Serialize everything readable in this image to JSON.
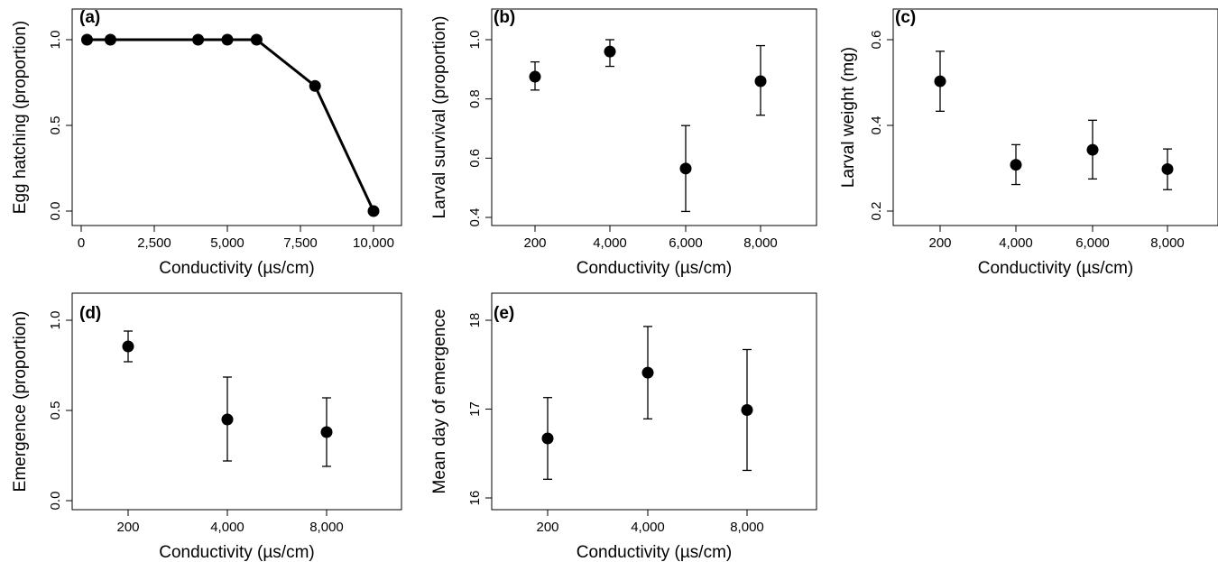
{
  "chart_data": [
    {
      "panel": "(a)",
      "type": "line",
      "xlabel": "Conductivity (µs/cm)",
      "ylabel": "Egg hatching (proportion)",
      "xlim": [
        0,
        10000
      ],
      "ylim": [
        0,
        1
      ],
      "xticks": [
        0,
        2500,
        5000,
        7500,
        10000
      ],
      "xtick_labels": [
        "0",
        "2,500",
        "5,000",
        "7,500",
        "10,000"
      ],
      "yticks": [
        0,
        0.5,
        1
      ],
      "ytick_labels": [
        "0.0",
        "0.5",
        "1.0"
      ],
      "grid": false,
      "series": [
        {
          "x": [
            200,
            1000,
            4000,
            5000,
            6000,
            8000,
            10000
          ],
          "y": [
            1.0,
            1.0,
            1.0,
            1.0,
            1.0,
            0.73,
            0.0
          ]
        }
      ]
    },
    {
      "panel": "(b)",
      "type": "scatter",
      "xlabel": "Conductivity (µs/cm)",
      "ylabel": "Larval survival (proportion)",
      "xlim": [
        200,
        8000
      ],
      "ylim": [
        0.4,
        1.0
      ],
      "xticks": [
        200,
        4000,
        6000,
        8000
      ],
      "xtick_labels": [
        "200",
        "4,000",
        "6,000",
        "8,000"
      ],
      "yticks": [
        0.4,
        0.6,
        0.8,
        1.0
      ],
      "ytick_labels": [
        "0.4",
        "0.6",
        "0.8",
        "1.0"
      ],
      "grid": false,
      "series": [
        {
          "x": [
            200,
            4000,
            6000,
            8000
          ],
          "y": [
            0.875,
            0.96,
            0.565,
            0.86
          ],
          "err_low": [
            0.83,
            0.91,
            0.42,
            0.745
          ],
          "err_high": [
            0.925,
            1.0,
            0.71,
            0.98
          ]
        }
      ]
    },
    {
      "panel": "(c)",
      "type": "scatter",
      "xlabel": "Conductivity (µs/cm)",
      "ylabel": "Larval weight (mg)",
      "xlim": [
        200,
        8000
      ],
      "ylim": [
        0.2,
        0.6
      ],
      "xticks": [
        200,
        4000,
        6000,
        8000
      ],
      "xtick_labels": [
        "200",
        "4,000",
        "6,000",
        "8,000"
      ],
      "yticks": [
        0.2,
        0.4,
        0.6
      ],
      "ytick_labels": [
        "0.2",
        "0.4",
        "0.6"
      ],
      "grid": false,
      "series": [
        {
          "x": [
            200,
            4000,
            6000,
            8000
          ],
          "y": [
            0.503,
            0.308,
            0.343,
            0.298
          ],
          "err_low": [
            0.433,
            0.262,
            0.275,
            0.25
          ],
          "err_high": [
            0.573,
            0.355,
            0.412,
            0.345
          ]
        }
      ]
    },
    {
      "panel": "(d)",
      "type": "scatter",
      "xlabel": "Conductivity (µs/cm)",
      "ylabel": "Emergence (proportion)",
      "xlim": [
        200,
        8000
      ],
      "ylim": [
        0,
        1
      ],
      "xticks": [
        200,
        4000,
        8000
      ],
      "xtick_labels": [
        "200",
        "4,000",
        "8,000"
      ],
      "yticks": [
        0,
        0.5,
        1
      ],
      "ytick_labels": [
        "0.0",
        "0.5",
        "1.0"
      ],
      "grid": false,
      "series": [
        {
          "x": [
            200,
            4000,
            8000
          ],
          "y": [
            0.855,
            0.45,
            0.38
          ],
          "err_low": [
            0.77,
            0.22,
            0.19
          ],
          "err_high": [
            0.94,
            0.685,
            0.57
          ]
        }
      ]
    },
    {
      "panel": "(e)",
      "type": "scatter",
      "xlabel": "Conductivity (µs/cm)",
      "ylabel": "Mean day of emergence",
      "xlim": [
        200,
        8000
      ],
      "ylim": [
        16,
        18
      ],
      "xticks": [
        200,
        4000,
        8000
      ],
      "xtick_labels": [
        "200",
        "4,000",
        "8,000"
      ],
      "yticks": [
        16,
        17,
        18
      ],
      "ytick_labels": [
        "16",
        "17",
        "18"
      ],
      "grid": false,
      "series": [
        {
          "x": [
            200,
            4000,
            8000
          ],
          "y": [
            16.67,
            17.41,
            16.99
          ],
          "err_low": [
            16.21,
            16.89,
            16.31
          ],
          "err_high": [
            17.13,
            17.93,
            17.67
          ]
        }
      ]
    }
  ]
}
